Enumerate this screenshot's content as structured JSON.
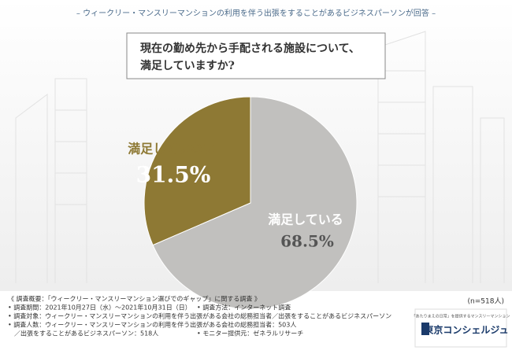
{
  "header": {
    "banner": "– ウィークリー・マンスリーマンションの利用を伴う出張をすることがあるビジネスパーソンが回答 –"
  },
  "chart_data": {
    "type": "pie",
    "title_lines": [
      "現在の勤め先から手配される施設について、",
      "満足していますか?"
    ],
    "categories": [
      "満足していない",
      "満足している"
    ],
    "values": [
      31.5,
      68.5
    ],
    "value_labels": [
      "31.5%",
      "68.5%"
    ],
    "colors": [
      "#8e7934",
      "#c1c0be"
    ],
    "note": "(n=518人)"
  },
  "footer": {
    "lines": [
      "《 調査概要：「ウィークリー・マンスリーマンション選びでのギャップ」に関する調査 》",
      "• 調査期間：2021年10月27日（水）～2021年10月31日（日）",
      "• 調査方法：インターネット調査",
      "• 調査対象：ウィークリー・マンスリーマンションの利用を伴う出張がある会社の総務担当者／出張をすることがあるビジネスパーソン",
      "• 調査人数：ウィークリー・マンスリーマンションの利用を伴う出張がある会社の総務担当者：503人",
      "／出張をすることがあるビジネスパーソン：518人",
      "• モニター提供元：ゼネラルリサーチ"
    ],
    "logo_tagline": "「あたりまえの日常」を提供するマンスリーマンション",
    "logo_name": "東京コンシェルジュ"
  }
}
